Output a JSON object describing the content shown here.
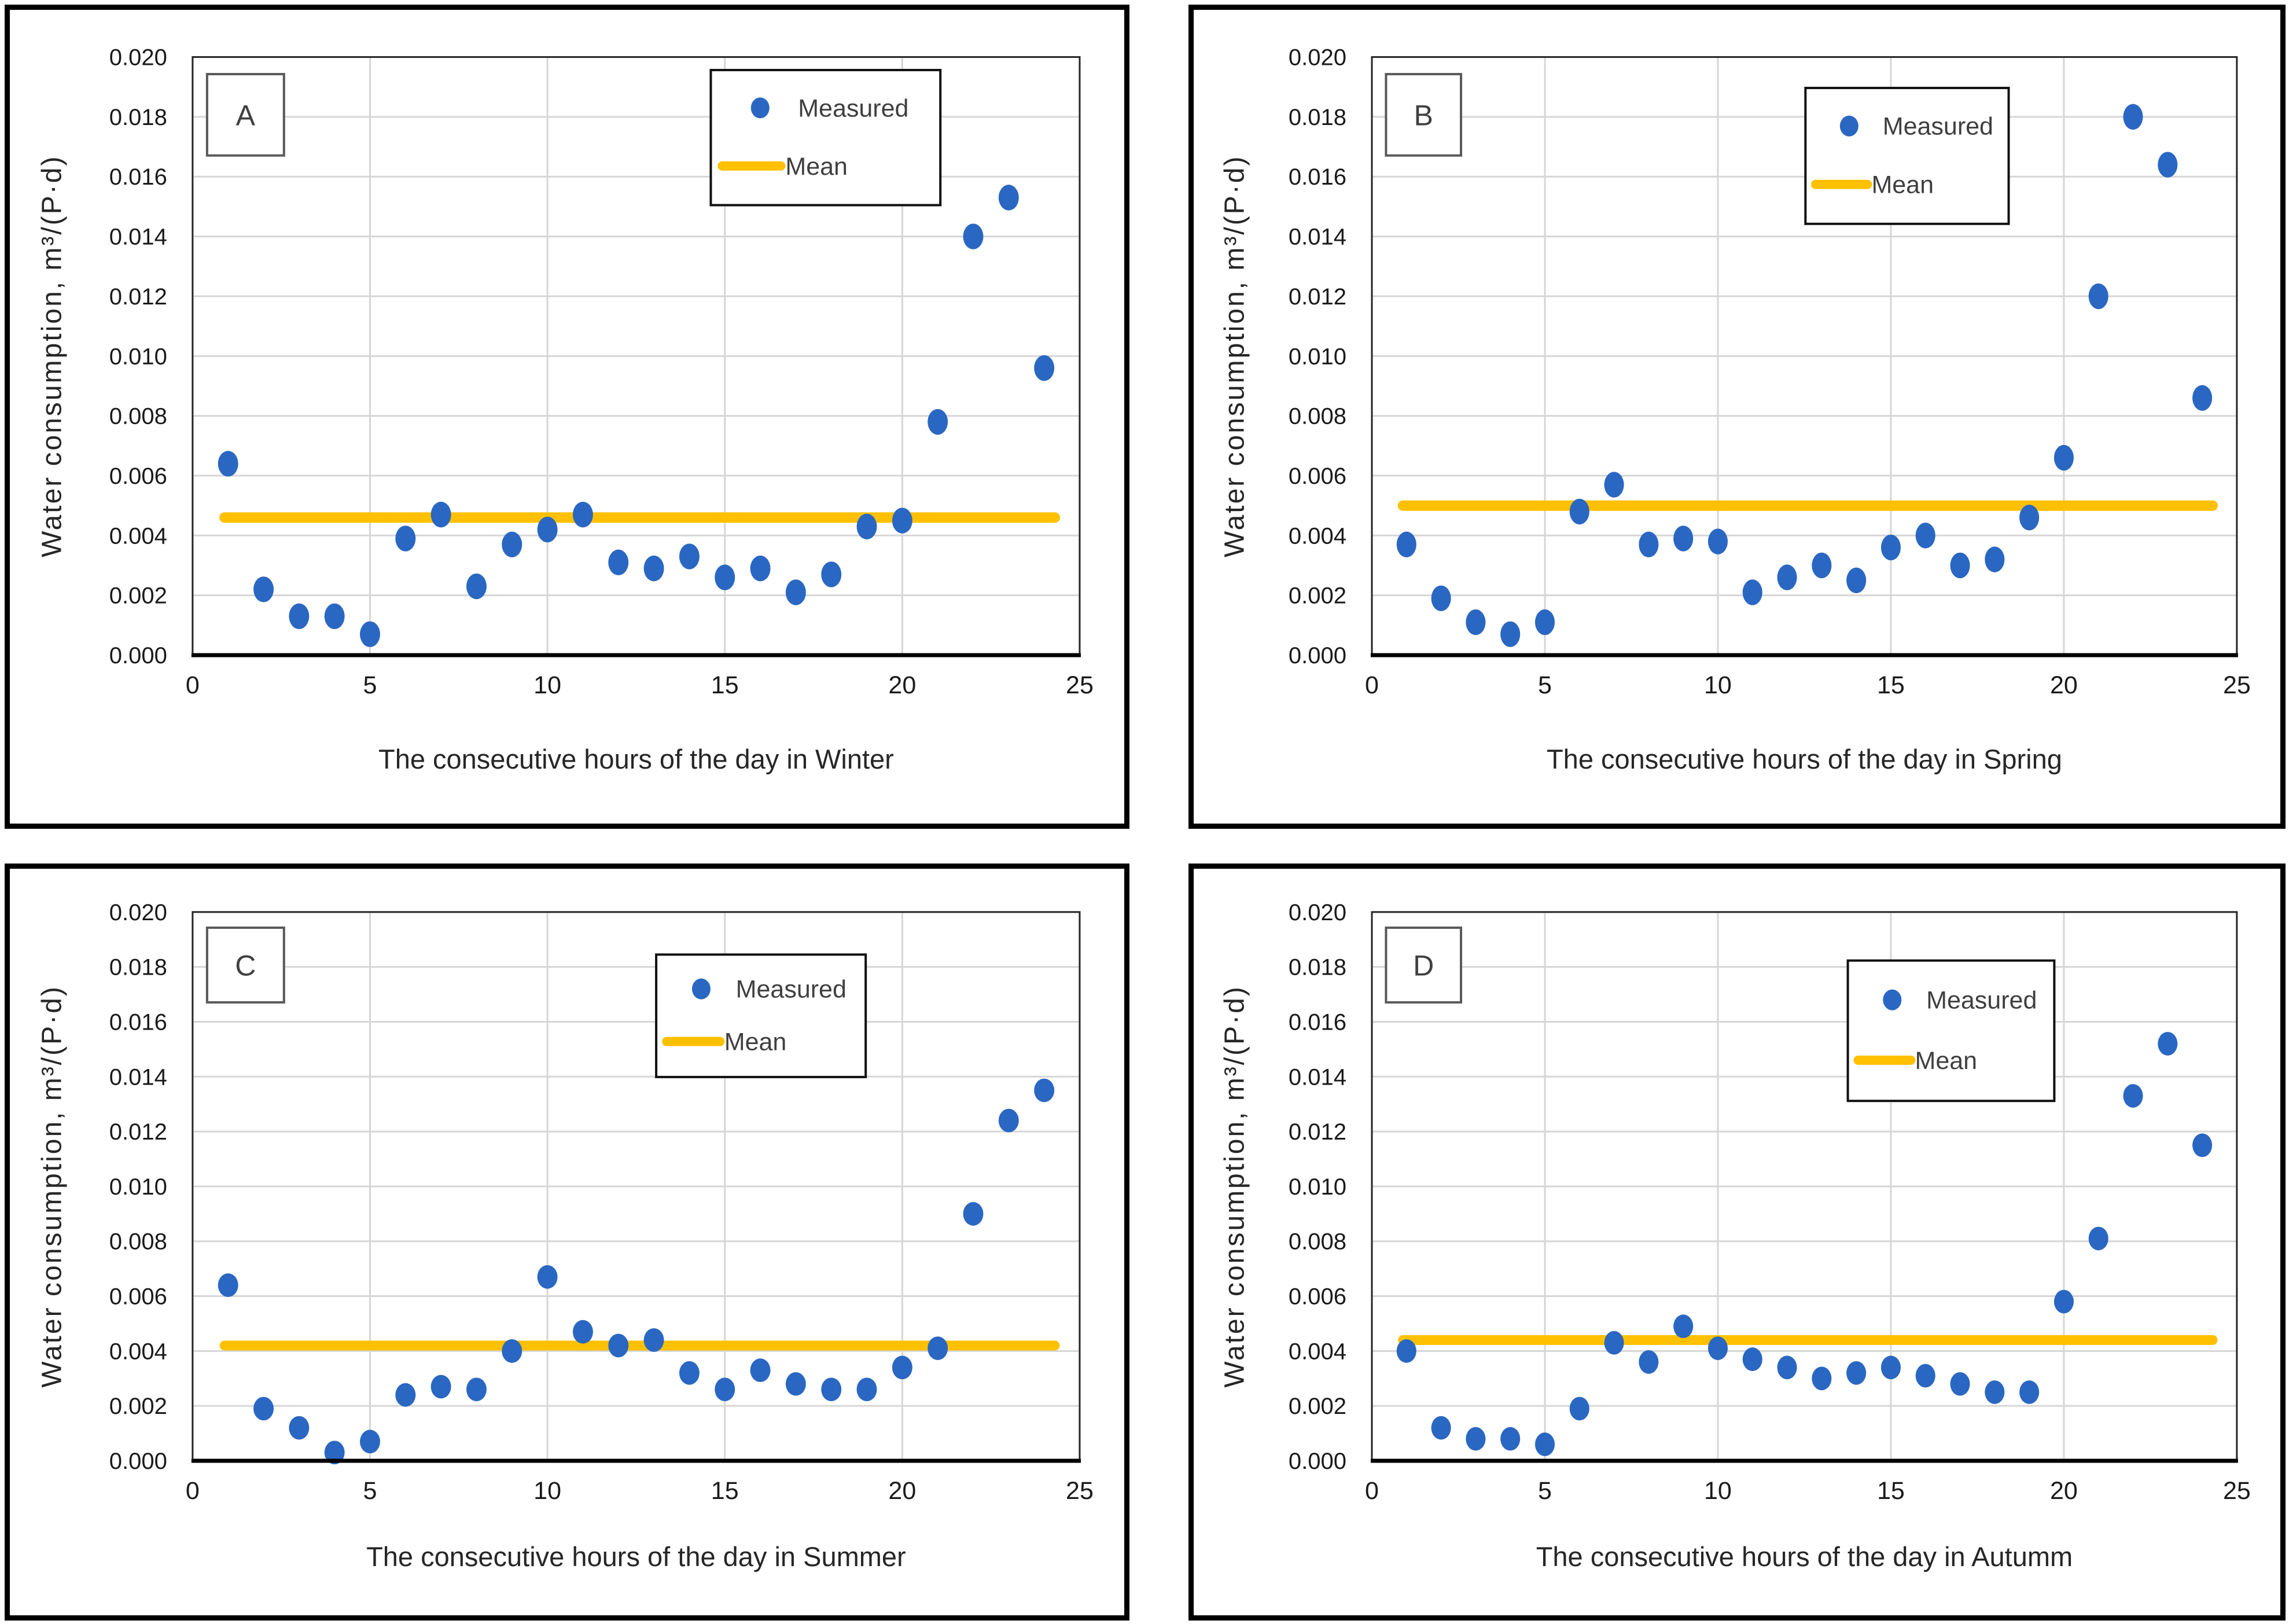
{
  "figure": {
    "background_color": "#ffffff",
    "marker_color": "#2A67C2",
    "mean_line_color": "#FFC000",
    "grid_color": "#D6D6D6",
    "plot_border_color": "#262626",
    "axis_line_color": "#000000",
    "tick_text_color": "#1a1a1a",
    "legend_text_color": "#3F3F3F",
    "letter_text_color": "#404040"
  },
  "chart_data": [
    {
      "panel_label": "A",
      "type": "scatter",
      "title": "",
      "xlabel": "The consecutive hours of the day in Winter",
      "ylabel": "Water consumption, m³/(P·d)",
      "xlim": [
        0,
        25
      ],
      "ylim": [
        0,
        0.02
      ],
      "grid": true,
      "xticks": [
        0,
        5,
        10,
        15,
        20,
        25
      ],
      "yticklabels": [
        "0.000",
        "0.002",
        "0.004",
        "0.006",
        "0.008",
        "0.010",
        "0.012",
        "0.014",
        "0.016",
        "0.018",
        "0.020"
      ],
      "legend": [
        "Measured",
        "Mean"
      ],
      "legend_position": "upper-center-right",
      "x": [
        1,
        2,
        3,
        4,
        5,
        6,
        7,
        8,
        9,
        10,
        11,
        12,
        13,
        14,
        15,
        16,
        17,
        18,
        19,
        20,
        21,
        22,
        23,
        24
      ],
      "series": [
        {
          "name": "Measured",
          "type": "scatter",
          "values": [
            0.0064,
            0.0022,
            0.0013,
            0.0013,
            0.0007,
            0.0039,
            0.0047,
            0.0023,
            0.0037,
            0.0042,
            0.0047,
            0.0031,
            0.0029,
            0.0033,
            0.0026,
            0.0029,
            0.0021,
            0.0027,
            0.0043,
            0.0045,
            0.0078,
            0.014,
            0.0153,
            0.0096
          ]
        },
        {
          "name": "Mean",
          "type": "line",
          "value": 0.0046
        }
      ]
    },
    {
      "panel_label": "B",
      "type": "scatter",
      "title": "",
      "xlabel": "The consecutive hours of the day in Spring",
      "ylabel": "Water consumption, m³/(P·d)",
      "xlim": [
        0,
        25
      ],
      "ylim": [
        0,
        0.02
      ],
      "grid": true,
      "xticks": [
        0,
        5,
        10,
        15,
        20,
        25
      ],
      "yticklabels": [
        "0.000",
        "0.002",
        "0.004",
        "0.006",
        "0.008",
        "0.010",
        "0.012",
        "0.014",
        "0.016",
        "0.018",
        "0.020"
      ],
      "legend": [
        "Measured",
        "Mean"
      ],
      "legend_position": "upper-center-right",
      "x": [
        1,
        2,
        3,
        4,
        5,
        6,
        7,
        8,
        9,
        10,
        11,
        12,
        13,
        14,
        15,
        16,
        17,
        18,
        19,
        20,
        21,
        22,
        23,
        24
      ],
      "series": [
        {
          "name": "Measured",
          "type": "scatter",
          "values": [
            0.0037,
            0.0019,
            0.0011,
            0.0007,
            0.0011,
            0.0048,
            0.0057,
            0.0037,
            0.0039,
            0.0038,
            0.0021,
            0.0026,
            0.003,
            0.0025,
            0.0036,
            0.004,
            0.003,
            0.0032,
            0.0046,
            0.0066,
            0.012,
            0.018,
            0.0164,
            0.0086
          ]
        },
        {
          "name": "Mean",
          "type": "line",
          "value": 0.005
        }
      ]
    },
    {
      "panel_label": "C",
      "type": "scatter",
      "title": "",
      "xlabel": "The consecutive hours of the day in Summer",
      "ylabel": "Water consumption, m³/(P·d)",
      "xlim": [
        0,
        25
      ],
      "ylim": [
        0,
        0.02
      ],
      "grid": true,
      "xticks": [
        0,
        5,
        10,
        15,
        20,
        25
      ],
      "yticklabels": [
        "0.000",
        "0.002",
        "0.004",
        "0.006",
        "0.008",
        "0.010",
        "0.012",
        "0.014",
        "0.016",
        "0.018",
        "0.020"
      ],
      "legend": [
        "Measured",
        "Mean"
      ],
      "legend_position": "upper-center-right",
      "x": [
        1,
        2,
        3,
        4,
        5,
        6,
        7,
        8,
        9,
        10,
        11,
        12,
        13,
        14,
        15,
        16,
        17,
        18,
        19,
        20,
        21,
        22,
        23,
        24
      ],
      "series": [
        {
          "name": "Measured",
          "type": "scatter",
          "values": [
            0.0064,
            0.0019,
            0.0012,
            0.0003,
            0.0007,
            0.0024,
            0.0027,
            0.0026,
            0.004,
            0.0067,
            0.0047,
            0.0042,
            0.0044,
            0.0032,
            0.0026,
            0.0033,
            0.0028,
            0.0026,
            0.0026,
            0.0034,
            0.0041,
            0.009,
            0.0124,
            0.0135
          ]
        },
        {
          "name": "Mean",
          "type": "line",
          "value": 0.0042
        }
      ]
    },
    {
      "panel_label": "D",
      "type": "scatter",
      "title": "",
      "xlabel": "The consecutive hours of the day in Autumm",
      "ylabel": "Water consumption, m³/(P·d)",
      "xlim": [
        0,
        25
      ],
      "ylim": [
        0,
        0.02
      ],
      "grid": true,
      "xticks": [
        0,
        5,
        10,
        15,
        20,
        25
      ],
      "yticklabels": [
        "0.000",
        "0.002",
        "0.004",
        "0.006",
        "0.008",
        "0.010",
        "0.012",
        "0.014",
        "0.016",
        "0.018",
        "0.020"
      ],
      "legend": [
        "Measured",
        "Mean"
      ],
      "legend_position": "upper-center-right",
      "x": [
        1,
        2,
        3,
        4,
        5,
        6,
        7,
        8,
        9,
        10,
        11,
        12,
        13,
        14,
        15,
        16,
        17,
        18,
        19,
        20,
        21,
        22,
        23,
        24
      ],
      "series": [
        {
          "name": "Measured",
          "type": "scatter",
          "values": [
            0.004,
            0.0012,
            0.0008,
            0.0008,
            0.0006,
            0.0019,
            0.0043,
            0.0036,
            0.0049,
            0.0041,
            0.0037,
            0.0034,
            0.003,
            0.0032,
            0.0034,
            0.0031,
            0.0028,
            0.0025,
            0.0025,
            0.0058,
            0.0081,
            0.0133,
            0.0152,
            0.0115
          ]
        },
        {
          "name": "Mean",
          "type": "line",
          "value": 0.0044
        }
      ]
    }
  ]
}
